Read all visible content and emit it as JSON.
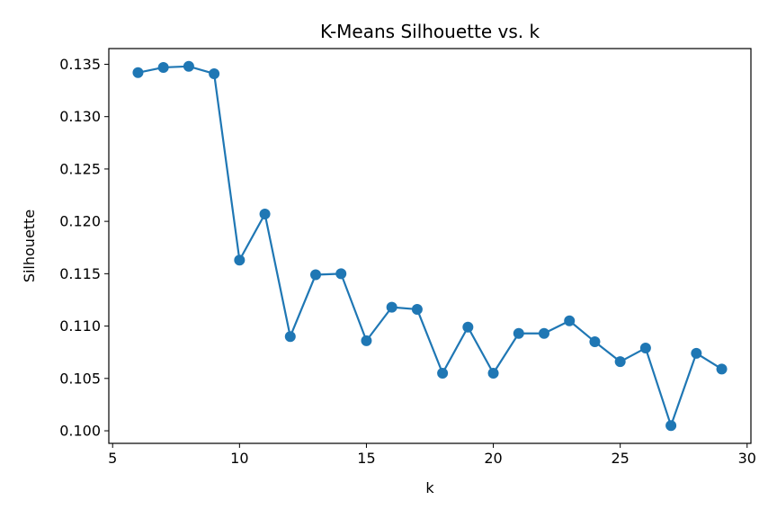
{
  "chart_data": {
    "type": "line",
    "title": "K-Means Silhouette vs. k",
    "xlabel": "k",
    "ylabel": "Silhouette",
    "xlim": [
      4.85,
      30.15
    ],
    "ylim": [
      0.0988,
      0.1365
    ],
    "xticks": [
      5,
      10,
      15,
      20,
      25,
      30
    ],
    "yticks": [
      0.1,
      0.105,
      0.11,
      0.115,
      0.12,
      0.125,
      0.13,
      0.135
    ],
    "ytick_labels": [
      "0.100",
      "0.105",
      "0.110",
      "0.115",
      "0.120",
      "0.125",
      "0.130",
      "0.135"
    ],
    "grid": false,
    "series": [
      {
        "color": "#1f77b4",
        "marker": "circle",
        "x": [
          6,
          7,
          8,
          9,
          10,
          11,
          12,
          13,
          14,
          15,
          16,
          17,
          18,
          19,
          20,
          21,
          22,
          23,
          24,
          25,
          26,
          27,
          28,
          29
        ],
        "y": [
          0.1342,
          0.1347,
          0.1348,
          0.1341,
          0.1163,
          0.1207,
          0.109,
          0.1149,
          0.115,
          0.1086,
          0.1118,
          0.1116,
          0.1055,
          0.1099,
          0.1055,
          0.1093,
          0.1093,
          0.1105,
          0.1085,
          0.1066,
          0.1079,
          0.1005,
          0.1074,
          0.1059
        ]
      }
    ]
  }
}
